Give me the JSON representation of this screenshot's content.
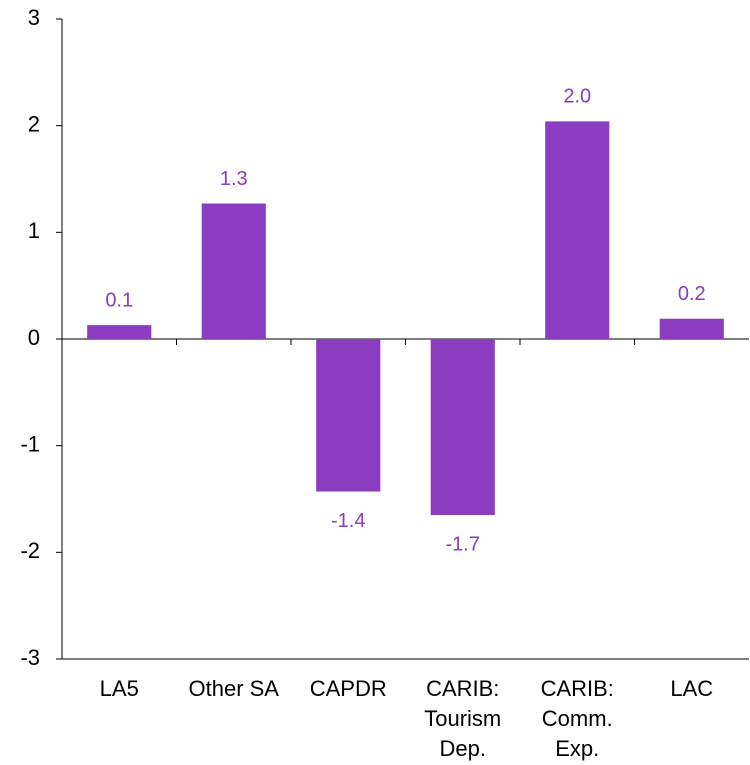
{
  "chart_data": {
    "type": "bar",
    "categories": [
      [
        "LA5"
      ],
      [
        "Other SA"
      ],
      [
        "CAPDR"
      ],
      [
        "CARIB:",
        "Tourism",
        "Dep."
      ],
      [
        "CARIB:",
        "Comm.",
        "Exp."
      ],
      [
        "LAC"
      ]
    ],
    "values": [
      0.13,
      1.27,
      -1.43,
      -1.65,
      2.04,
      0.19
    ],
    "value_labels": [
      "0.1",
      "1.3",
      "-1.4",
      "-1.7",
      "2.0",
      "0.2"
    ],
    "color": "#8b3cc0",
    "ylim": [
      -3,
      3
    ],
    "yticks": [
      -3,
      -2,
      -1,
      0,
      1,
      2,
      3
    ]
  }
}
